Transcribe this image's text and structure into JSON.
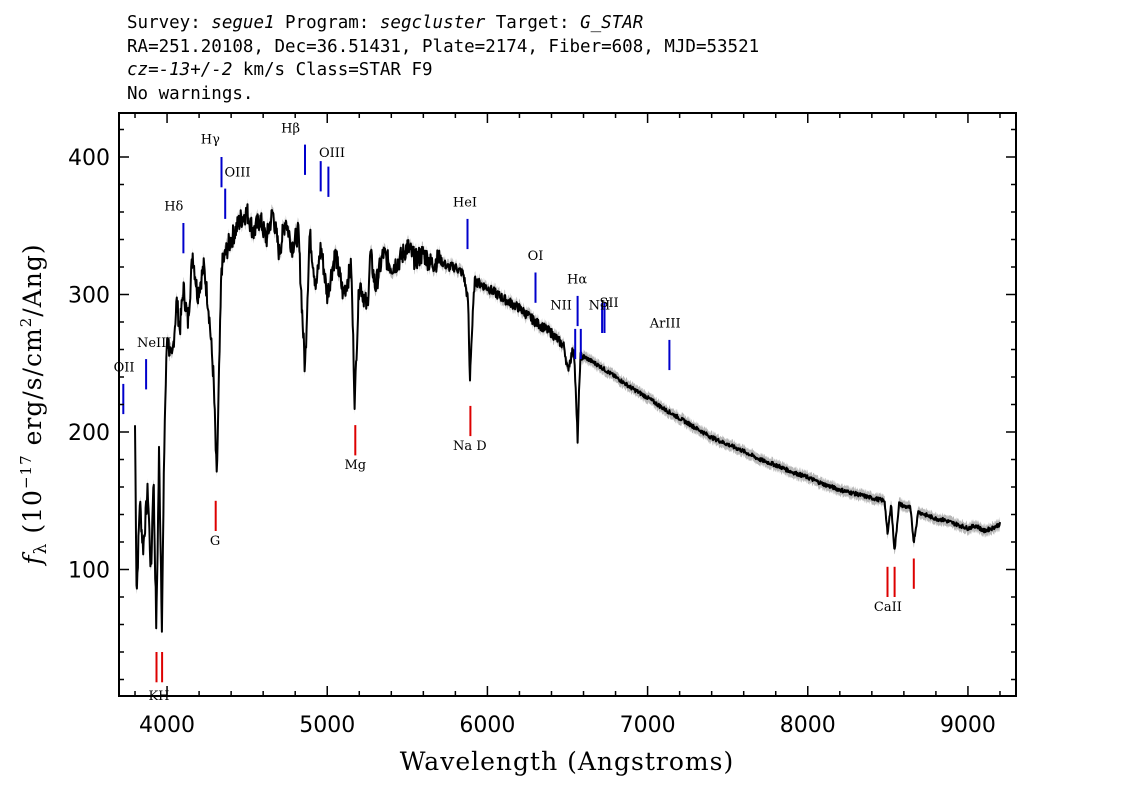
{
  "header": {
    "survey_label": "Survey: ",
    "survey": "segue1",
    "program_label": " Program: ",
    "program": "segcluster",
    "target_label": " Target: ",
    "target": "G_STAR",
    "line2": "RA=251.20108, Dec=36.51431, Plate=2174, Fiber=608, MJD=53521",
    "cz_label": "cz=",
    "cz_value": "-13+/-2",
    "cz_units": " km/s Class=STAR F9",
    "line4": "No warnings."
  },
  "colors": {
    "spectrum": "#000000",
    "error_band": "#b8b8b8",
    "emission_line": "#0000cc",
    "absorption_line": "#dd0000"
  },
  "chart_data": {
    "type": "line",
    "xlabel": "Wavelength (Angstroms)",
    "ylabel_prefix": "f",
    "ylabel_sub": "λ",
    "ylabel_open": " (10",
    "ylabel_exp": "−17",
    "ylabel_mid": " erg/s/cm",
    "ylabel_exp2": "2",
    "ylabel_close": "/Ang)",
    "xlim": [
      3700,
      9300
    ],
    "ylim": [
      8,
      432
    ],
    "xticks": [
      4000,
      5000,
      6000,
      7000,
      8000,
      9000
    ],
    "yticks": [
      100,
      200,
      300,
      400
    ],
    "grid": false,
    "spectrum": {
      "x": [
        3800,
        3810,
        3830,
        3850,
        3880,
        3900,
        3915,
        3933,
        3950,
        3968,
        3985,
        4000,
        4030,
        4060,
        4080,
        4102,
        4130,
        4160,
        4190,
        4230,
        4260,
        4290,
        4310,
        4340,
        4380,
        4420,
        4460,
        4500,
        4540,
        4580,
        4620,
        4660,
        4700,
        4740,
        4780,
        4820,
        4861,
        4890,
        4930,
        4960,
        5000,
        5050,
        5100,
        5150,
        5172,
        5183,
        5200,
        5250,
        5270,
        5300,
        5350,
        5400,
        5450,
        5500,
        5550,
        5600,
        5650,
        5700,
        5750,
        5800,
        5850,
        5880,
        5890,
        5896,
        5920,
        6000,
        6100,
        6200,
        6300,
        6400,
        6480,
        6500,
        6540,
        6563,
        6580,
        6600,
        6700,
        6800,
        6900,
        7000,
        7100,
        7200,
        7300,
        7400,
        7500,
        7600,
        7700,
        7800,
        7900,
        8000,
        8100,
        8200,
        8300,
        8400,
        8480,
        8498,
        8520,
        8542,
        8570,
        8600,
        8640,
        8662,
        8690,
        8750,
        8800,
        8850,
        8900,
        8950,
        9000,
        9050,
        9100,
        9150,
        9200
      ],
      "y": [
        205,
        80,
        150,
        115,
        158,
        95,
        170,
        55,
        185,
        62,
        205,
        270,
        250,
        295,
        275,
        305,
        280,
        330,
        300,
        320,
        290,
        240,
        165,
        320,
        335,
        345,
        355,
        360,
        345,
        355,
        340,
        360,
        330,
        355,
        335,
        345,
        245,
        345,
        305,
        335,
        300,
        330,
        300,
        320,
        220,
        260,
        310,
        290,
        330,
        305,
        330,
        320,
        325,
        335,
        325,
        330,
        322,
        326,
        320,
        320,
        315,
        295,
        236,
        255,
        310,
        305,
        297,
        290,
        280,
        272,
        262,
        245,
        262,
        195,
        255,
        255,
        248,
        240,
        232,
        225,
        217,
        210,
        203,
        196,
        191,
        186,
        180,
        176,
        171,
        167,
        162,
        158,
        155,
        152,
        150,
        125,
        148,
        113,
        148,
        146,
        145,
        120,
        142,
        139,
        137,
        136,
        134,
        132,
        130,
        132,
        128,
        130,
        133
      ],
      "error_band": 4
    },
    "lines": [
      {
        "label": "OII",
        "wave": 3727,
        "kind": "emission",
        "y0": 213,
        "y1": 235,
        "label_y": 244
      },
      {
        "label": "NeIII",
        "wave": 3869,
        "kind": "emission",
        "y0": 231,
        "y1": 253,
        "label_y": 262
      },
      {
        "label": "Hδ",
        "wave": 4102,
        "kind": "emission",
        "y0": 330,
        "y1": 352,
        "label_y": 361
      },
      {
        "label": "Hγ",
        "wave": 4340,
        "kind": "emission",
        "y0": 378,
        "y1": 400,
        "label_y": 410
      },
      {
        "label": "OIII",
        "wave": 4363,
        "kind": "emission",
        "y0": 355,
        "y1": 377,
        "label_y": 386
      },
      {
        "label": "Hβ",
        "wave": 4861,
        "kind": "emission",
        "y0": 387,
        "y1": 409,
        "label_y": 418
      },
      {
        "label": "OIII",
        "wave": 4959,
        "kind": "emission",
        "y0": 375,
        "y1": 397,
        "label_y": 400
      },
      {
        "label": "OIII",
        "wave": 5007,
        "kind": "emission",
        "y0": 371,
        "y1": 393,
        "label_y": 400
      },
      {
        "label": "HeI",
        "wave": 5876,
        "kind": "emission",
        "y0": 333,
        "y1": 355,
        "label_y": 364
      },
      {
        "label": "OI",
        "wave": 6300,
        "kind": "emission",
        "y0": 294,
        "y1": 316,
        "label_y": 325
      },
      {
        "label": "NII",
        "wave": 6548,
        "kind": "emission",
        "y0": 253,
        "y1": 275,
        "label_y": 289
      },
      {
        "label": "Hα",
        "wave": 6563,
        "kind": "emission",
        "y0": 277,
        "y1": 299,
        "label_y": 308
      },
      {
        "label": "NII",
        "wave": 6583,
        "kind": "emission",
        "y0": 253,
        "y1": 275,
        "label_y": 289
      },
      {
        "label": "SII",
        "wave": 6716,
        "kind": "emission",
        "y0": 272,
        "y1": 294,
        "label_y": 291
      },
      {
        "label": "SII",
        "wave": 6731,
        "kind": "emission",
        "y0": 272,
        "y1": 294,
        "label_y": 291
      },
      {
        "label": "ArIII",
        "wave": 7136,
        "kind": "emission",
        "y0": 245,
        "y1": 267,
        "label_y": 276
      },
      {
        "label": "K",
        "wave": 3934,
        "kind": "absorption",
        "y0": 18,
        "y1": 40,
        "label_y": 5
      },
      {
        "label": "H",
        "wave": 3969,
        "kind": "absorption",
        "y0": 18,
        "y1": 40,
        "label_y": 5
      },
      {
        "label": "G",
        "wave": 4304,
        "kind": "absorption",
        "y0": 128,
        "y1": 150,
        "label_y": 118
      },
      {
        "label": "Mg",
        "wave": 5175,
        "kind": "absorption",
        "y0": 183,
        "y1": 205,
        "label_y": 173
      },
      {
        "label": "Na",
        "wave": 5894,
        "kind": "absorption",
        "y0": 197,
        "y1": 219,
        "label_y": 187
      },
      {
        "label": "CaII",
        "wave": 8498,
        "kind": "absorption",
        "y0": 80,
        "y1": 102,
        "label_y": 70
      },
      {
        "label": "CaII",
        "wave": 8542,
        "kind": "absorption",
        "y0": 80,
        "y1": 102,
        "label_y": 70
      },
      {
        "label": "CaII",
        "wave": 8662,
        "kind": "absorption",
        "y0": 86,
        "y1": 108,
        "label_y": 70
      }
    ],
    "visible_labels": {
      "OII": "OII",
      "NeIII": "NeIII",
      "Hdelta": "Hδ",
      "Hgamma": "Hγ",
      "OIII_a": "OIII",
      "Hbeta": "Hβ",
      "OIII_b": "OIII",
      "HeI": "HeI",
      "OI": "OI",
      "Halpha": "Hα",
      "NII_a": "NII",
      "NII_b": "NII",
      "SII": "SII",
      "ArIII": "ArIII",
      "KH": "KH",
      "G": "G",
      "Mg": "Mg",
      "NaD": "Na D",
      "CaII": "CaII"
    }
  }
}
